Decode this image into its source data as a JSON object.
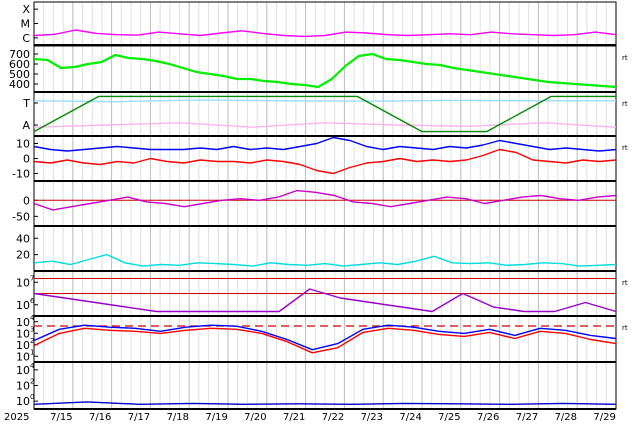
{
  "chart_data": {
    "type": "line",
    "x_ticks": [
      "2025",
      "7/15",
      "7/16",
      "7/17",
      "7/18",
      "7/19",
      "7/20",
      "7/21",
      "7/22",
      "7/23",
      "7/24",
      "7/25",
      "7/26",
      "7/27",
      "7/28",
      "7/29"
    ],
    "panels": [
      {
        "id": "xray",
        "y_labels": [
          "X",
          "M",
          "C"
        ],
        "right_marker": "",
        "series": [
          {
            "color": "#ff00ff",
            "values": [
              0.22,
              0.25,
              0.35,
              0.27,
              0.24,
              0.23,
              0.3,
              0.26,
              0.22,
              0.28,
              0.33,
              0.27,
              0.22,
              0.2,
              0.22,
              0.3,
              0.28,
              0.24,
              0.22,
              0.24,
              0.26,
              0.24,
              0.3,
              0.26,
              0.24,
              0.22,
              0.24,
              0.3,
              0.24
            ]
          }
        ]
      },
      {
        "id": "speed",
        "y_labels": [
          "700",
          "600",
          "500",
          "400"
        ],
        "y_ticks": [
          700,
          600,
          500,
          400
        ],
        "ylim": [
          320,
          780
        ],
        "right_marker": "rt",
        "series": [
          {
            "color": "#00ee00",
            "values": [
              650,
              640,
              560,
              570,
              600,
              620,
              690,
              660,
              650,
              630,
              600,
              560,
              520,
              500,
              480,
              450,
              450,
              430,
              420,
              400,
              390,
              370,
              450,
              580,
              680,
              700,
              650,
              640,
              620,
              600,
              590,
              560,
              540,
              520,
              500,
              480,
              460,
              440,
              420,
              410,
              400,
              390,
              380,
              370
            ]
          }
        ]
      },
      {
        "id": "polarity",
        "y_labels": [
          "T",
          "A"
        ],
        "right_marker": "rt",
        "series": [
          {
            "name": "",
            "color": "#ffb3ee",
            "values": [
              0.2,
              0.25,
              0.3,
              0.2,
              0.3,
              0.25,
              0.22,
              0.3,
              0.2
            ]
          },
          {
            "name": "",
            "color": "#99ddff",
            "values": [
              0.8,
              0.78,
              0.82,
              0.8,
              0.79,
              0.81,
              0.8,
              0.8
            ]
          },
          {
            "color": "#008800",
            "values": [
              0.1,
              0.9,
              0.9,
              0.9,
              0.9,
              0.9,
              0.1,
              0.1,
              0.9,
              0.9
            ]
          }
        ]
      },
      {
        "id": "bz",
        "y_labels": [
          "10",
          "0",
          "-10"
        ],
        "y_ticks": [
          10,
          0,
          -10
        ],
        "ylim": [
          -15,
          15
        ],
        "right_marker": "rt",
        "series": [
          {
            "color": "#0000ff",
            "values": [
              8,
              6,
              5,
              6,
              7,
              8,
              7,
              6,
              6,
              6,
              7,
              6,
              8,
              6,
              7,
              6,
              8,
              10,
              14,
              12,
              8,
              6,
              8,
              7,
              6,
              8,
              7,
              9,
              12,
              10,
              8,
              6,
              7,
              6,
              5,
              6
            ]
          },
          {
            "color": "#ff0000",
            "values": [
              -2,
              -3,
              -1,
              -3,
              -4,
              -2,
              -3,
              0,
              -2,
              -3,
              -1,
              -2,
              -2,
              -3,
              -1,
              -2,
              -4,
              -8,
              -10,
              -6,
              -3,
              -2,
              0,
              -2,
              -1,
              -2,
              -1,
              2,
              6,
              4,
              -1,
              -2,
              -3,
              -1,
              -2,
              -1
            ]
          }
        ]
      },
      {
        "id": "phi",
        "y_labels": [
          "0",
          "-50"
        ],
        "y_ticks": [
          0,
          -50
        ],
        "ylim": [
          -80,
          60
        ],
        "right_marker": "",
        "series": [
          {
            "color": "#cc00cc",
            "values": [
              -10,
              -30,
              -20,
              -10,
              0,
              10,
              -5,
              -10,
              -20,
              -10,
              0,
              5,
              0,
              10,
              30,
              25,
              15,
              -5,
              -10,
              -20,
              -10,
              0,
              10,
              5,
              -10,
              0,
              10,
              15,
              5,
              0,
              10,
              15
            ]
          }
        ],
        "reference_line": 0
      },
      {
        "id": "density",
        "y_labels": [
          "40",
          "20"
        ],
        "y_ticks": [
          40,
          20
        ],
        "ylim": [
          0,
          55
        ],
        "right_marker": "",
        "series": [
          {
            "color": "#00dddd",
            "values": [
              10,
              12,
              8,
              14,
              20,
              10,
              6,
              8,
              7,
              10,
              9,
              8,
              6,
              10,
              8,
              7,
              9,
              6,
              8,
              10,
              8,
              12,
              18,
              10,
              9,
              10,
              7,
              8,
              10,
              9,
              6,
              7,
              8
            ]
          }
        ]
      },
      {
        "id": "electron",
        "y_labels": [
          "10",
          "10"
        ],
        "y_exponents": [
          "7",
          "6"
        ],
        "right_marker": "rt",
        "series": [
          {
            "color": "#9900cc",
            "values": [
              0.5,
              0.4,
              0.3,
              0.2,
              0.1,
              0.1,
              0.1,
              0.1,
              0.1,
              0.6,
              0.4,
              0.3,
              0.2,
              0.1,
              0.5,
              0.2,
              0.1,
              0.1,
              0.3,
              0.1
            ]
          }
        ],
        "threshold_lines": 2
      },
      {
        "id": "proton",
        "y_labels": [
          "10",
          "10",
          "10",
          "10"
        ],
        "y_exponents": [
          "4",
          "3",
          "2",
          "1"
        ],
        "right_marker": "rt",
        "series": [
          {
            "color": "#0000ff",
            "values": [
              2.1,
              3.2,
              3.6,
              3.4,
              3.3,
              3.0,
              3.4,
              3.6,
              3.5,
              3.0,
              2.2,
              1.2,
              1.8,
              3.2,
              3.6,
              3.4,
              3.0,
              2.8,
              3.2,
              2.6,
              3.3,
              3.1,
              2.6,
              2.3
            ]
          },
          {
            "color": "#ff0000",
            "values": [
              1.6,
              2.8,
              3.3,
              3.1,
              3.0,
              2.8,
              3.1,
              3.3,
              3.2,
              2.8,
              2.0,
              0.9,
              1.4,
              2.9,
              3.3,
              3.1,
              2.7,
              2.5,
              2.9,
              2.3,
              3.0,
              2.8,
              2.2,
              1.8
            ]
          }
        ],
        "threshold": 3.7
      },
      {
        "id": "neutron",
        "y_labels": [
          "10",
          "10",
          "10"
        ],
        "y_exponents": [
          "4",
          "2",
          "0"
        ],
        "right_marker": "",
        "series": [
          {
            "color": "#0000cc",
            "values": [
              0.1,
              0.15,
              0.1,
              0.12,
              0.1,
              0.11,
              0.1,
              0.12,
              0.11,
              0.1,
              0.12,
              0.1
            ]
          }
        ]
      }
    ]
  }
}
